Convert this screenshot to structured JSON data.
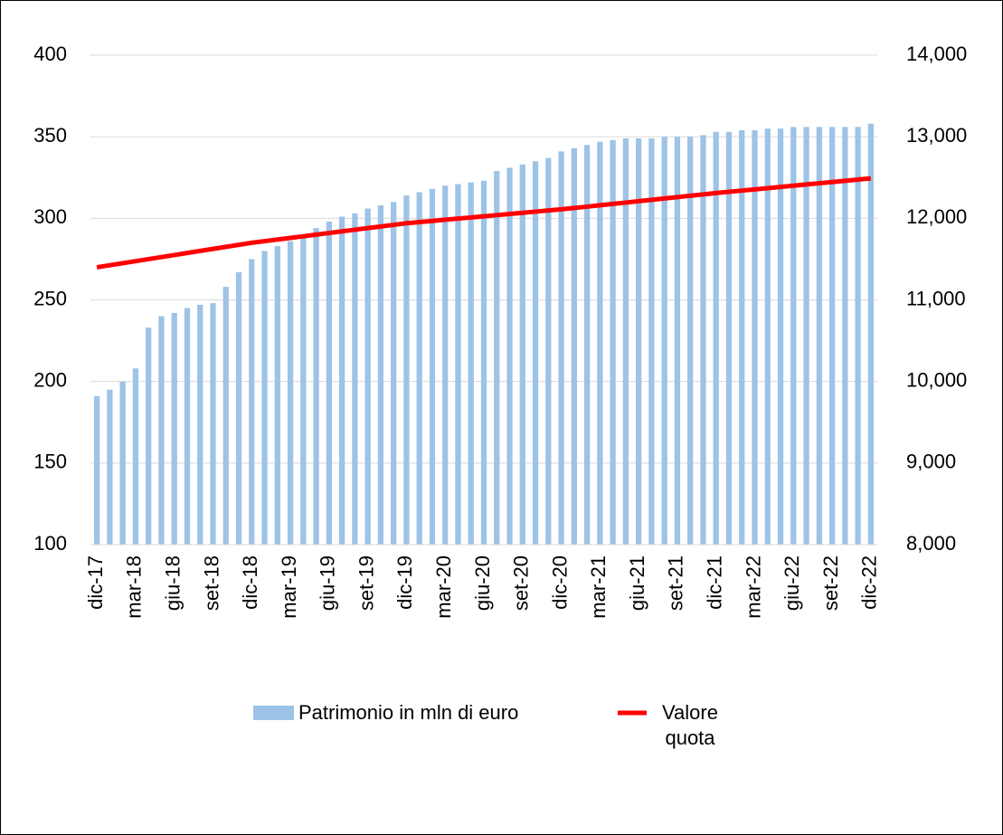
{
  "chart_data": {
    "type": "bar-line",
    "categories": [
      "dic-17",
      null,
      null,
      "mar-18",
      null,
      null,
      "giu-18",
      null,
      null,
      "set-18",
      null,
      null,
      "dic-18",
      null,
      null,
      "mar-19",
      null,
      null,
      "giu-19",
      null,
      null,
      "set-19",
      null,
      null,
      "dic-19",
      null,
      null,
      "mar-20",
      null,
      null,
      "giu-20",
      null,
      null,
      "set-20",
      null,
      null,
      "dic-20",
      null,
      null,
      "mar-21",
      null,
      null,
      "giu-21",
      null,
      null,
      "set-21",
      null,
      null,
      "dic-21",
      null,
      null,
      "mar-22",
      null,
      null,
      "giu-22",
      null,
      null,
      "set-22",
      null,
      null,
      "dic-22"
    ],
    "series": [
      {
        "name": "Patrimonio in mln di euro",
        "type": "bar",
        "color": "#9dc3e6",
        "values": [
          191,
          195,
          200,
          208,
          233,
          240,
          242,
          245,
          247,
          248,
          258,
          267,
          275,
          280,
          283,
          286,
          289,
          294,
          298,
          301,
          303,
          306,
          308,
          310,
          314,
          316,
          318,
          320,
          321,
          322,
          323,
          329,
          331,
          333,
          335,
          337,
          341,
          343,
          345,
          347,
          348,
          349,
          349,
          349,
          350,
          350,
          350,
          351,
          353,
          353,
          354,
          354,
          355,
          355,
          356,
          356,
          356,
          356,
          356,
          356,
          358
        ]
      },
      {
        "name": "Valore quota",
        "type": "line",
        "axis": "y2",
        "color": "#ff0000",
        "values": [
          11400,
          11425,
          11450,
          11475,
          11500,
          11525,
          11550,
          11575,
          11600,
          11625,
          11650,
          11675,
          11700,
          11720,
          11740,
          11760,
          11780,
          11800,
          11820,
          11840,
          11860,
          11880,
          11900,
          11920,
          11940,
          11954,
          11968,
          11983,
          11997,
          12011,
          12025,
          12039,
          12054,
          12068,
          12082,
          12096,
          12110,
          12127,
          12143,
          12160,
          12177,
          12193,
          12210,
          12227,
          12243,
          12260,
          12277,
          12293,
          12310,
          12325,
          12340,
          12355,
          12370,
          12385,
          12400,
          12415,
          12430,
          12445,
          12460,
          12475,
          12490
        ]
      }
    ],
    "ylim": [
      100,
      400
    ],
    "yticks": [
      100,
      150,
      200,
      250,
      300,
      350,
      400
    ],
    "y2lim": [
      8000,
      14000
    ],
    "y2ticks": [
      {
        "value": 8000,
        "label": "8,000"
      },
      {
        "value": 9000,
        "label": "9,000"
      },
      {
        "value": 10000,
        "label": "10,000"
      },
      {
        "value": 11000,
        "label": "11,000"
      },
      {
        "value": 12000,
        "label": "12,000"
      },
      {
        "value": 13000,
        "label": "13,000"
      },
      {
        "value": 14000,
        "label": "14,000"
      }
    ],
    "grid": true,
    "legend": "bottom"
  }
}
